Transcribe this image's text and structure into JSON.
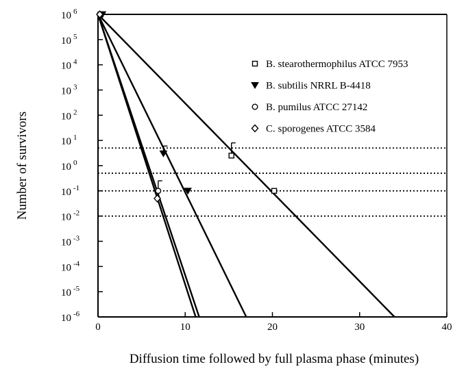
{
  "chart_data": {
    "type": "scatter",
    "xlabel": "Diffusion time followed by full plasma phase (minutes)",
    "ylabel": "Number of survivors",
    "xlim": [
      0,
      40
    ],
    "ylim_log10": [
      -6,
      6
    ],
    "y_scale": "log",
    "grid": false,
    "legend_position": "top-right",
    "x_ticks": [
      0,
      10,
      20,
      30,
      40
    ],
    "y_ticks": [
      {
        "base": "10",
        "exp": "6"
      },
      {
        "base": "10",
        "exp": "5"
      },
      {
        "base": "10",
        "exp": "4"
      },
      {
        "base": "10",
        "exp": "3"
      },
      {
        "base": "10",
        "exp": "2"
      },
      {
        "base": "10",
        "exp": "1"
      },
      {
        "base": "10",
        "exp": "0"
      },
      {
        "base": "10",
        "exp": "-1"
      },
      {
        "base": "10",
        "exp": "-2"
      },
      {
        "base": "10",
        "exp": "-3"
      },
      {
        "base": "10",
        "exp": "-4"
      },
      {
        "base": "10",
        "exp": "-5"
      },
      {
        "base": "10",
        "exp": "-6"
      }
    ],
    "reference_lines_log10": [
      0.7,
      -0.3,
      -1.0,
      -2.0
    ],
    "series": [
      {
        "name": "B. stearothermophilus ATCC 7953",
        "marker": "square",
        "points": [
          {
            "x": 0.3,
            "y": 1000000
          },
          {
            "x": 15.3,
            "y": 2.5
          },
          {
            "x": 20.2,
            "y": 0.1
          }
        ],
        "error_bars": [
          {
            "x": 15.3,
            "y_high": 8
          }
        ],
        "fit_line": {
          "x": [
            0,
            34
          ],
          "y": [
            1000000,
            1e-06
          ]
        }
      },
      {
        "name": "B. subtilis NRRL B-4418",
        "marker": "triangle-down",
        "points": [
          {
            "x": 0.5,
            "y": 1000000
          },
          {
            "x": 7.5,
            "y": 3
          },
          {
            "x": 10.3,
            "y": 0.1
          }
        ],
        "error_bars": [
          {
            "x": 7.5,
            "y_high": 6
          }
        ],
        "fit_line": {
          "x": [
            0,
            17
          ],
          "y": [
            1000000,
            1e-06
          ]
        }
      },
      {
        "name": "B. pumilus ATCC 27142",
        "marker": "circle",
        "points": [
          {
            "x": 0.2,
            "y": 1000000
          },
          {
            "x": 6.9,
            "y": 0.1
          }
        ],
        "error_bars": [
          {
            "x": 6.9,
            "y_high": 0.25
          }
        ],
        "fit_line": {
          "x": [
            0,
            11.6
          ],
          "y": [
            1000000,
            1e-06
          ]
        }
      },
      {
        "name": "C. sporogenes ATCC 3584",
        "marker": "diamond",
        "points": [
          {
            "x": 0.2,
            "y": 1000000
          },
          {
            "x": 6.8,
            "y": 0.05
          }
        ],
        "error_bars": [],
        "fit_line": {
          "x": [
            0,
            11.2
          ],
          "y": [
            1000000,
            1e-06
          ]
        }
      }
    ]
  }
}
